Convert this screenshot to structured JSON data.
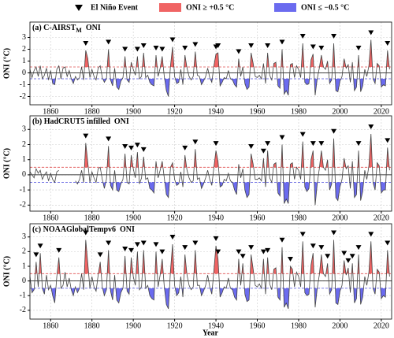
{
  "chart_data": {
    "type": "line",
    "x_label": "Year",
    "xlim": [
      1850,
      2025
    ],
    "xticks": [
      1860,
      1880,
      1900,
      1920,
      1940,
      1960,
      1980,
      2000,
      2020
    ],
    "grid": true,
    "line_color": "#444444",
    "legend": [
      {
        "name": "El Niño Event",
        "color": "#000000"
      },
      {
        "name": "ONI ≥ +0.5 °C",
        "color": "#f06464"
      },
      {
        "name": "ONI ≤ −0.5 °C",
        "color": "#6b6bef"
      }
    ],
    "reference_lines": [
      {
        "value": 0.5,
        "color": "#e05050"
      },
      {
        "value": -0.5,
        "color": "#5050e0"
      }
    ],
    "x": [
      1850,
      1851,
      1852,
      1853,
      1854,
      1855,
      1856,
      1857,
      1858,
      1859,
      1860,
      1861,
      1862,
      1863,
      1864,
      1865,
      1866,
      1867,
      1868,
      1869,
      1870,
      1871,
      1872,
      1873,
      1874,
      1875,
      1876,
      1877,
      1878,
      1879,
      1880,
      1881,
      1882,
      1883,
      1884,
      1885,
      1886,
      1887,
      1888,
      1889,
      1890,
      1891,
      1892,
      1893,
      1894,
      1895,
      1896,
      1897,
      1898,
      1899,
      1900,
      1901,
      1902,
      1903,
      1904,
      1905,
      1906,
      1907,
      1908,
      1909,
      1910,
      1911,
      1912,
      1913,
      1914,
      1915,
      1916,
      1917,
      1918,
      1919,
      1920,
      1921,
      1922,
      1923,
      1924,
      1925,
      1926,
      1927,
      1928,
      1929,
      1930,
      1931,
      1932,
      1933,
      1934,
      1935,
      1936,
      1937,
      1938,
      1939,
      1940,
      1941,
      1942,
      1943,
      1944,
      1945,
      1946,
      1947,
      1948,
      1949,
      1950,
      1951,
      1952,
      1953,
      1954,
      1955,
      1956,
      1957,
      1958,
      1959,
      1960,
      1961,
      1962,
      1963,
      1964,
      1965,
      1966,
      1967,
      1968,
      1969,
      1970,
      1971,
      1972,
      1973,
      1974,
      1975,
      1976,
      1977,
      1978,
      1979,
      1980,
      1981,
      1982,
      1983,
      1984,
      1985,
      1986,
      1987,
      1988,
      1989,
      1990,
      1991,
      1992,
      1993,
      1994,
      1995,
      1996,
      1997,
      1998,
      1999,
      2000,
      2001,
      2002,
      2003,
      2004,
      2005,
      2006,
      2007,
      2008,
      2009,
      2010,
      2011,
      2012,
      2013,
      2014,
      2015,
      2016,
      2017,
      2018,
      2019,
      2020,
      2021,
      2022,
      2023,
      2024
    ],
    "panels": [
      {
        "title": "(a) C-AIRST",
        "title_sub": "M",
        "title_end": "ONI",
        "y_label": "ONI (°C)",
        "ylim": [
          -2.7,
          4.3
        ],
        "yticks": [
          -2,
          -1,
          0,
          1,
          2,
          3
        ],
        "values": [
          0.3,
          -0.4,
          0.2,
          0.5,
          -0.3,
          0.6,
          -0.5,
          -0.2,
          0.4,
          -0.6,
          0.2,
          -0.9,
          -1.0,
          0.3,
          0.6,
          -0.5,
          0.4,
          0.5,
          -0.3,
          0.2,
          -0.5,
          -0.9,
          -0.3,
          -0.6,
          -0.4,
          0.5,
          -0.6,
          1.9,
          1.2,
          -0.4,
          0.3,
          -0.3,
          -0.6,
          0.4,
          0.6,
          -0.4,
          -0.8,
          -0.5,
          2.0,
          -0.6,
          -1.1,
          0.4,
          -1.2,
          -1.4,
          -0.7,
          -0.4,
          1.4,
          -0.6,
          -0.8,
          0.9,
          0.3,
          -0.2,
          1.4,
          -0.5,
          -0.3,
          1.7,
          -0.4,
          -0.2,
          -0.8,
          -1.0,
          -1.1,
          1.5,
          -0.3,
          0.4,
          1.4,
          -0.3,
          -1.5,
          -2.0,
          0.6,
          2.2,
          -0.3,
          -0.9,
          -0.8,
          0.3,
          -1.0,
          1.5,
          0.4,
          -0.3,
          -0.6,
          -0.3,
          1.8,
          -0.2,
          -0.3,
          -1.0,
          -0.7,
          -0.3,
          0.4,
          -0.4,
          -0.8,
          0.6,
          1.6,
          1.7,
          -1.1,
          -0.8,
          -0.4,
          -0.5,
          0.2,
          -0.5,
          -0.6,
          -1.0,
          -1.2,
          1.2,
          -0.3,
          0.5,
          -0.9,
          -1.4,
          -1.2,
          1.7,
          0.8,
          -0.3,
          -0.4,
          -0.2,
          -0.5,
          0.8,
          -0.9,
          1.7,
          -0.2,
          -0.6,
          0.8,
          0.9,
          -1.1,
          -1.3,
          2.0,
          -1.8,
          -1.5,
          -1.9,
          0.7,
          0.8,
          -0.4,
          0.6,
          0.3,
          -0.4,
          2.5,
          -0.8,
          -1.0,
          -0.9,
          1.1,
          1.6,
          -1.9,
          -0.5,
          0.4,
          1.5,
          0.5,
          0.3,
          1.0,
          -0.9,
          -0.6,
          2.5,
          -1.5,
          -1.6,
          -0.7,
          -0.3,
          1.2,
          0.4,
          0.7,
          -0.8,
          0.9,
          -1.5,
          -1.2,
          1.5,
          -1.6,
          -1.1,
          0.3,
          -0.3,
          0.6,
          2.8,
          -0.5,
          -0.9,
          0.8,
          0.6,
          -1.2,
          -1.0,
          -1.1,
          1.9,
          0.3
        ],
        "events": [
          1877,
          1888,
          1896,
          1902,
          1905,
          1911,
          1914,
          1919,
          1925,
          1930,
          1940,
          1941,
          1951,
          1957,
          1965,
          1972,
          1982,
          1987,
          1991,
          1997,
          2009,
          2015,
          2023
        ]
      },
      {
        "title": "(b) HadCRUT5 infilled",
        "title_end": "ONI",
        "y_label": "ONI (°C)",
        "ylim": [
          -2.4,
          3.9
        ],
        "yticks": [
          -2,
          -1,
          0,
          1,
          2,
          3
        ],
        "values": [
          0.2,
          0.0,
          -0.2,
          0.4,
          0.1,
          0.3,
          -0.3,
          0.0,
          0.2,
          -0.4,
          0.1,
          -0.3,
          -0.5,
          0.2,
          0.3,
          null,
          null,
          null,
          null,
          null,
          null,
          null,
          -0.4,
          -0.6,
          -0.3,
          0.3,
          -0.5,
          2.1,
          0.8,
          -0.5,
          0.2,
          -0.2,
          -0.5,
          0.4,
          0.5,
          -0.3,
          -0.9,
          -0.3,
          1.9,
          -0.7,
          -1.0,
          0.3,
          -1.0,
          -1.1,
          -0.6,
          -0.3,
          1.4,
          -0.5,
          -0.6,
          1.3,
          0.4,
          -0.2,
          1.5,
          -0.6,
          -0.2,
          1.2,
          -0.3,
          -0.2,
          -0.9,
          -1.0,
          -1.2,
          0.9,
          -0.2,
          0.3,
          0.9,
          -0.2,
          -1.3,
          -1.5,
          0.5,
          0.8,
          -0.3,
          -0.7,
          -0.6,
          0.2,
          -0.8,
          1.3,
          0.3,
          -0.2,
          -0.5,
          -0.4,
          1.7,
          -0.3,
          -0.2,
          -0.9,
          -0.6,
          -0.2,
          0.3,
          -0.3,
          -0.7,
          0.5,
          1.6,
          0.9,
          -0.8,
          -0.7,
          -0.3,
          -0.4,
          0.1,
          -0.4,
          -0.5,
          -1.0,
          -1.3,
          0.7,
          -0.2,
          0.4,
          -1.0,
          -1.5,
          -1.3,
          1.4,
          0.7,
          -0.3,
          -0.3,
          -0.2,
          -0.4,
          1.1,
          -0.8,
          1.6,
          -0.2,
          -0.5,
          0.7,
          0.8,
          -1.2,
          -1.4,
          2.0,
          -1.9,
          -1.6,
          -1.9,
          0.7,
          0.8,
          -0.3,
          0.5,
          0.3,
          -0.3,
          2.2,
          -0.8,
          -1.1,
          -0.9,
          1.0,
          1.6,
          -2.0,
          -0.6,
          0.4,
          1.6,
          0.5,
          0.3,
          1.0,
          -1.0,
          -0.6,
          2.4,
          -1.5,
          -1.7,
          -0.8,
          -0.3,
          1.1,
          0.4,
          0.6,
          -0.9,
          0.9,
          -1.5,
          -1.3,
          1.6,
          -1.7,
          -1.1,
          0.3,
          -0.3,
          0.6,
          2.7,
          -0.5,
          -1.0,
          0.8,
          0.6,
          -1.2,
          -1.0,
          -1.0,
          1.8,
          0.3
        ],
        "events": [
          1877,
          1888,
          1896,
          1899,
          1902,
          1905,
          1925,
          1930,
          1940,
          1957,
          1963,
          1965,
          1972,
          1982,
          1987,
          1991,
          1997,
          2009,
          2015,
          2023
        ]
      },
      {
        "title": "(c) NOAAGlobalTempv6",
        "title_end": "ONI",
        "y_label": "ONI (°C)",
        "ylim": [
          -2.6,
          3.9
        ],
        "yticks": [
          -2,
          -1,
          0,
          1,
          2,
          3
        ],
        "values": [
          0.3,
          -0.8,
          -0.6,
          1.3,
          -0.4,
          1.9,
          -0.5,
          -0.9,
          0.4,
          -0.6,
          -0.3,
          -1.0,
          -1.5,
          0.3,
          1.6,
          -0.5,
          -0.3,
          0.6,
          -0.4,
          0.2,
          -0.6,
          -1.0,
          -0.4,
          -0.8,
          -0.5,
          0.5,
          -0.6,
          2.8,
          1.2,
          -0.5,
          0.3,
          -0.4,
          -0.7,
          0.4,
          1.3,
          -0.4,
          -1.0,
          -0.6,
          2.1,
          -0.7,
          -1.3,
          0.4,
          -1.3,
          -1.5,
          -0.8,
          -0.5,
          1.7,
          -0.7,
          -0.9,
          1.6,
          0.3,
          -0.3,
          2.0,
          -0.6,
          -0.4,
          2.1,
          -0.5,
          -0.3,
          -1.0,
          -1.2,
          -1.3,
          2.0,
          -0.4,
          0.4,
          1.5,
          -0.4,
          -1.6,
          -1.9,
          0.7,
          2.5,
          -0.3,
          -1.0,
          -0.8,
          0.3,
          -1.1,
          1.8,
          0.4,
          -0.3,
          -0.6,
          -0.4,
          2.1,
          -0.3,
          -0.3,
          -1.0,
          -0.7,
          -0.3,
          0.4,
          -0.4,
          -0.9,
          0.7,
          2.4,
          1.5,
          -1.1,
          -0.8,
          -0.4,
          -0.5,
          0.2,
          -0.5,
          -0.6,
          -1.1,
          -1.3,
          1.5,
          -0.3,
          1.2,
          -0.9,
          -1.4,
          -1.3,
          1.8,
          0.8,
          -0.3,
          -0.4,
          -0.2,
          -0.5,
          1.5,
          -0.9,
          1.6,
          -0.2,
          -0.6,
          0.8,
          0.9,
          -1.1,
          -1.3,
          2.3,
          -1.8,
          -1.5,
          -1.9,
          1.0,
          0.8,
          -0.4,
          0.6,
          0.3,
          -0.4,
          2.7,
          -0.8,
          -1.0,
          -0.9,
          1.1,
          1.9,
          -1.8,
          -0.5,
          0.4,
          1.8,
          0.5,
          0.3,
          1.2,
          -0.9,
          -0.6,
          2.8,
          -1.5,
          -1.6,
          -0.7,
          -0.3,
          1.4,
          0.4,
          0.9,
          -0.8,
          1.2,
          -1.5,
          -1.2,
          1.8,
          -1.6,
          -1.1,
          0.3,
          -0.3,
          0.6,
          2.7,
          -0.5,
          -0.9,
          0.8,
          0.6,
          -1.2,
          -1.0,
          -1.1,
          2.1,
          0.3
        ],
        "events": [
          1853,
          1855,
          1864,
          1877,
          1884,
          1888,
          1896,
          1899,
          1902,
          1905,
          1911,
          1914,
          1919,
          1925,
          1930,
          1940,
          1941,
          1951,
          1953,
          1957,
          1963,
          1965,
          1972,
          1976,
          1982,
          1987,
          1991,
          1994,
          1997,
          2002,
          2004,
          2006,
          2009,
          2015,
          2023
        ]
      }
    ]
  }
}
